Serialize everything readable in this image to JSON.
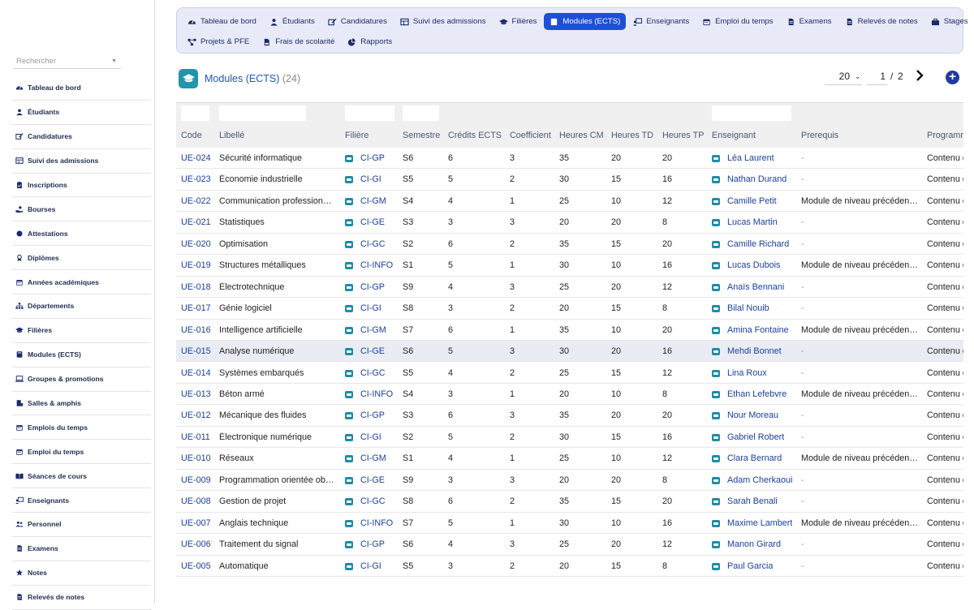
{
  "sidebar": {
    "search_placeholder": "Rechercher",
    "items": [
      {
        "label": "Tableau de bord",
        "icon": "gauge-icon"
      },
      {
        "label": "Étudiants",
        "icon": "user-graduate-icon"
      },
      {
        "label": "Candidatures",
        "icon": "edit-icon"
      },
      {
        "label": "Suivi des admissions",
        "icon": "table-icon"
      },
      {
        "label": "Inscriptions",
        "icon": "clipboard-icon"
      },
      {
        "label": "Bourses",
        "icon": "hand-coins-icon"
      },
      {
        "label": "Attestations",
        "icon": "certificate-icon"
      },
      {
        "label": "Diplômes",
        "icon": "award-icon"
      },
      {
        "label": "Années académiques",
        "icon": "calendar-icon"
      },
      {
        "label": "Départements",
        "icon": "sitemap-icon"
      },
      {
        "label": "Filières",
        "icon": "graduation-cap-icon"
      },
      {
        "label": "Modules (ECTS)",
        "icon": "book-icon"
      },
      {
        "label": "Groupes & promotions",
        "icon": "laptop-icon"
      },
      {
        "label": "Salles & amphis",
        "icon": "door-icon"
      },
      {
        "label": "Emplois du temps",
        "icon": "calendar-icon"
      },
      {
        "label": "Emploi du temps",
        "icon": "calendar-icon"
      },
      {
        "label": "Séances de cours",
        "icon": "book-open-icon"
      },
      {
        "label": "Enseignants",
        "icon": "chalkboard-teacher-icon"
      },
      {
        "label": "Personnel",
        "icon": "users-icon"
      },
      {
        "label": "Examens",
        "icon": "file-icon"
      },
      {
        "label": "Notes",
        "icon": "star-icon"
      },
      {
        "label": "Relevés de notes",
        "icon": "file-icon"
      }
    ]
  },
  "topnav": {
    "row1": [
      {
        "label": "Tableau de bord",
        "icon": "gauge-icon",
        "active": false
      },
      {
        "label": "Étudiants",
        "icon": "user-graduate-icon",
        "active": false
      },
      {
        "label": "Candidatures",
        "icon": "edit-icon",
        "active": false
      },
      {
        "label": "Suivi des admissions",
        "icon": "table-icon",
        "active": false
      },
      {
        "label": "Filières",
        "icon": "graduation-cap-icon",
        "active": false
      },
      {
        "label": "Modules (ECTS)",
        "icon": "book-icon",
        "active": true
      },
      {
        "label": "Enseignants",
        "icon": "chalkboard-teacher-icon",
        "active": false
      },
      {
        "label": "Emploi du temps",
        "icon": "calendar-icon",
        "active": false
      },
      {
        "label": "Examens",
        "icon": "file-icon",
        "active": false
      },
      {
        "label": "Relevés de notes",
        "icon": "file-icon",
        "active": false
      },
      {
        "label": "Stages",
        "icon": "briefcase-icon",
        "active": false
      }
    ],
    "row2": [
      {
        "label": "Projets & PFE",
        "icon": "project-diagram-icon",
        "active": false
      },
      {
        "label": "Frais de scolarité",
        "icon": "file-invoice-icon",
        "active": false
      },
      {
        "label": "Rapports",
        "icon": "chart-pie-icon",
        "active": false
      }
    ]
  },
  "page": {
    "title": "Modules (ECTS)",
    "count": "(24)",
    "per_page": "20",
    "current_page": "1",
    "page_sep": "/",
    "total_pages": "2",
    "add_label": "+"
  },
  "table": {
    "columns": [
      "Code",
      "Libellé",
      "Filière",
      "Semestre",
      "Crédits ECTS",
      "Coefficient",
      "Heures CM",
      "Heures TD",
      "Heures TP",
      "Enseignant",
      "Prerequis",
      "Programme"
    ],
    "highlight_row": 9,
    "rows": [
      [
        "UE-024",
        "Sécurité informatique",
        "CI-GP",
        "S6",
        "6",
        "3",
        "35",
        "20",
        "20",
        "Léa Laurent",
        "-",
        "Contenu d"
      ],
      [
        "UE-023",
        "Économie industrielle",
        "CI-GI",
        "S5",
        "5",
        "2",
        "30",
        "15",
        "16",
        "Nathan Durand",
        "-",
        "Contenu d"
      ],
      [
        "UE-022",
        "Communication professionn…",
        "CI-GM",
        "S4",
        "4",
        "1",
        "25",
        "10",
        "12",
        "Camille Petit",
        "Module de niveau précéden…",
        "Contenu d"
      ],
      [
        "UE-021",
        "Statistiques",
        "CI-GE",
        "S3",
        "3",
        "3",
        "20",
        "20",
        "8",
        "Lucas Martin",
        "-",
        "Contenu d"
      ],
      [
        "UE-020",
        "Optimisation",
        "CI-GC",
        "S2",
        "6",
        "2",
        "35",
        "15",
        "20",
        "Camille Richard",
        "-",
        "Contenu d"
      ],
      [
        "UE-019",
        "Structures métalliques",
        "CI-INFO",
        "S1",
        "5",
        "1",
        "30",
        "10",
        "16",
        "Lucas Dubois",
        "Module de niveau précéden…",
        "Contenu d"
      ],
      [
        "UE-018",
        "Électrotechnique",
        "CI-GP",
        "S9",
        "4",
        "3",
        "25",
        "20",
        "12",
        "Anaïs Bennani",
        "-",
        "Contenu d"
      ],
      [
        "UE-017",
        "Génie logiciel",
        "CI-GI",
        "S8",
        "3",
        "2",
        "20",
        "15",
        "8",
        "Bilal Nouib",
        "-",
        "Contenu d"
      ],
      [
        "UE-016",
        "Intelligence artificielle",
        "CI-GM",
        "S7",
        "6",
        "1",
        "35",
        "10",
        "20",
        "Amina Fontaine",
        "Module de niveau précéden…",
        "Contenu d"
      ],
      [
        "UE-015",
        "Analyse numérique",
        "CI-GE",
        "S6",
        "5",
        "3",
        "30",
        "20",
        "16",
        "Mehdi Bonnet",
        "-",
        "Contenu d"
      ],
      [
        "UE-014",
        "Systèmes embarqués",
        "CI-GC",
        "S5",
        "4",
        "2",
        "25",
        "15",
        "12",
        "Lina Roux",
        "-",
        "Contenu d"
      ],
      [
        "UE-013",
        "Béton armé",
        "CI-INFO",
        "S4",
        "3",
        "1",
        "20",
        "10",
        "8",
        "Ethan Lefebvre",
        "Module de niveau précéden…",
        "Contenu d"
      ],
      [
        "UE-012",
        "Mécanique des fluides",
        "CI-GP",
        "S3",
        "6",
        "3",
        "35",
        "20",
        "20",
        "Nour Moreau",
        "-",
        "Contenu d"
      ],
      [
        "UE-011",
        "Électronique numérique",
        "CI-GI",
        "S2",
        "5",
        "2",
        "30",
        "15",
        "16",
        "Gabriel Robert",
        "-",
        "Contenu d"
      ],
      [
        "UE-010",
        "Réseaux",
        "CI-GM",
        "S1",
        "4",
        "1",
        "25",
        "10",
        "12",
        "Clara Bernard",
        "Module de niveau précéden…",
        "Contenu d"
      ],
      [
        "UE-009",
        "Programmation orientée objet",
        "CI-GE",
        "S9",
        "3",
        "3",
        "20",
        "20",
        "8",
        "Adam Cherkaoui",
        "-",
        "Contenu d"
      ],
      [
        "UE-008",
        "Gestion de projet",
        "CI-GC",
        "S8",
        "6",
        "2",
        "35",
        "15",
        "20",
        "Sarah Benali",
        "-",
        "Contenu d"
      ],
      [
        "UE-007",
        "Anglais technique",
        "CI-INFO",
        "S7",
        "5",
        "1",
        "30",
        "10",
        "16",
        "Maxime Lambert",
        "Module de niveau précéden…",
        "Contenu d"
      ],
      [
        "UE-006",
        "Traitement du signal",
        "CI-GP",
        "S6",
        "4",
        "3",
        "25",
        "20",
        "12",
        "Manon Girard",
        "-",
        "Contenu d"
      ],
      [
        "UE-005",
        "Automatique",
        "CI-GI",
        "S5",
        "3",
        "2",
        "20",
        "15",
        "8",
        "Paul Garcia",
        "-",
        "Contenu d"
      ]
    ]
  },
  "colors": {
    "accent": "#1e4fd8",
    "link": "#1a3f9e",
    "nav_bg": "#e8ebf7",
    "icon_teal": "#1f8ca6"
  }
}
